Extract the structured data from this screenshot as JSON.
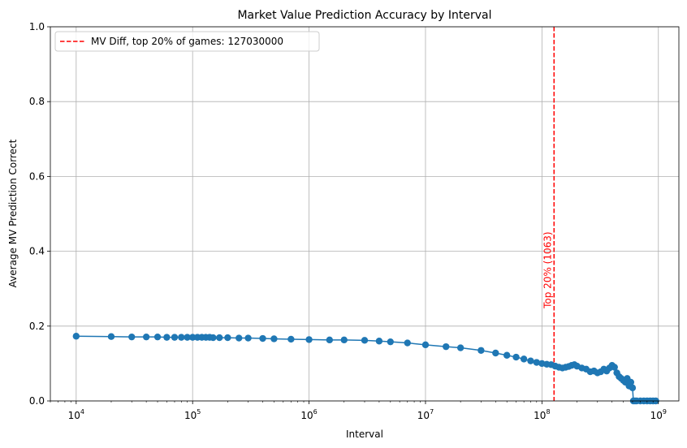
{
  "colors": {
    "series": "#1f77b4",
    "threshold": "#ff0000",
    "grid": "#b0b0b0"
  },
  "chart_data": {
    "type": "line",
    "title": "Market Value Prediction Accuracy by Interval",
    "xlabel": "Interval",
    "ylabel": "Average MV Prediction Correct",
    "x_scale": "log",
    "xlim": [
      6000,
      1500000000
    ],
    "ylim": [
      0,
      1.0
    ],
    "grid": true,
    "x_ticks": [
      {
        "base": "10",
        "exp": "4",
        "value": 10000
      },
      {
        "base": "10",
        "exp": "5",
        "value": 100000
      },
      {
        "base": "10",
        "exp": "6",
        "value": 1000000
      },
      {
        "base": "10",
        "exp": "7",
        "value": 10000000
      },
      {
        "base": "10",
        "exp": "8",
        "value": 100000000
      },
      {
        "base": "10",
        "exp": "9",
        "value": 1000000000
      }
    ],
    "y_ticks": [
      "0.0",
      "0.2",
      "0.4",
      "0.6",
      "0.8",
      "1.0"
    ],
    "legend": {
      "placement": "top-left",
      "label": "MV Diff, top 20% of games: 127030000"
    },
    "threshold": {
      "x": 127030000,
      "label": "Top 20% (1063)",
      "label_y": 0.35
    },
    "series": [
      {
        "x": [
          10000,
          20000,
          30000,
          40000,
          50000,
          60000,
          70000,
          80000,
          90000,
          100000,
          110000,
          120000,
          130000,
          140000,
          150000,
          170000,
          200000,
          250000,
          300000,
          400000,
          500000,
          700000,
          1000000,
          1500000,
          2000000,
          3000000,
          4000000,
          5000000,
          7000000,
          10000000,
          15000000,
          20000000,
          30000000,
          40000000,
          50000000,
          60000000,
          70000000,
          80000000,
          90000000,
          100000000,
          110000000,
          120000000,
          130000000,
          140000000,
          150000000,
          160000000,
          170000000,
          180000000,
          190000000,
          200000000,
          220000000,
          240000000,
          260000000,
          280000000,
          300000000,
          320000000,
          340000000,
          360000000,
          380000000,
          400000000,
          420000000,
          440000000,
          460000000,
          480000000,
          500000000,
          520000000,
          540000000,
          560000000,
          580000000,
          600000000,
          610000000,
          630000000,
          650000000,
          700000000,
          750000000,
          800000000,
          850000000,
          900000000,
          950000000
        ],
        "y": [
          0.173,
          0.172,
          0.171,
          0.171,
          0.171,
          0.17,
          0.17,
          0.17,
          0.17,
          0.17,
          0.17,
          0.17,
          0.17,
          0.17,
          0.169,
          0.169,
          0.169,
          0.168,
          0.168,
          0.167,
          0.166,
          0.165,
          0.164,
          0.163,
          0.163,
          0.162,
          0.16,
          0.158,
          0.155,
          0.15,
          0.145,
          0.142,
          0.135,
          0.128,
          0.122,
          0.117,
          0.112,
          0.107,
          0.103,
          0.1,
          0.098,
          0.097,
          0.093,
          0.09,
          0.088,
          0.09,
          0.092,
          0.095,
          0.097,
          0.093,
          0.088,
          0.085,
          0.078,
          0.08,
          0.075,
          0.078,
          0.085,
          0.08,
          0.088,
          0.095,
          0.09,
          0.075,
          0.065,
          0.06,
          0.055,
          0.05,
          0.06,
          0.04,
          0.05,
          0.035,
          0.0,
          0.0,
          0.0,
          0.0,
          0.0,
          0.0,
          0.0,
          0.0,
          0.0
        ]
      }
    ]
  }
}
